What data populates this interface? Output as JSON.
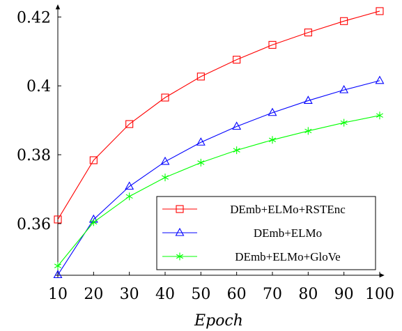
{
  "chart_data": {
    "type": "line",
    "xlabel": "Epoch",
    "ylabel": "",
    "x": [
      10,
      20,
      30,
      40,
      50,
      60,
      70,
      80,
      90,
      100
    ],
    "xlim": [
      10,
      100
    ],
    "ylim": [
      0.345,
      0.4225
    ],
    "x_ticks": [
      "10",
      "20",
      "30",
      "40",
      "50",
      "60",
      "70",
      "80",
      "90",
      "100"
    ],
    "y_ticks": [
      {
        "value": 0.36,
        "label": "0.36"
      },
      {
        "value": 0.38,
        "label": "0.38"
      },
      {
        "value": 0.4,
        "label": "0.4"
      },
      {
        "value": 0.42,
        "label": "0.42"
      }
    ],
    "grid": false,
    "legend_position": "bottom-right",
    "series": [
      {
        "name": "DEmb+ELMo+RSTEnc",
        "color": "#ff0000",
        "marker": "square",
        "values": [
          0.3612,
          0.3784,
          0.3889,
          0.3966,
          0.4027,
          0.4076,
          0.4119,
          0.4155,
          0.4188,
          0.4217
        ]
      },
      {
        "name": "DEmb+ELMo",
        "color": "#0000ff",
        "marker": "triangle",
        "values": [
          0.3451,
          0.3612,
          0.3708,
          0.378,
          0.3836,
          0.3882,
          0.3922,
          0.3957,
          0.3988,
          0.4015
        ]
      },
      {
        "name": "DEmb+ELMo+GloVe",
        "color": "#00ff00",
        "marker": "asterisk",
        "values": [
          0.3477,
          0.3604,
          0.3679,
          0.3734,
          0.3777,
          0.3813,
          0.3843,
          0.3869,
          0.3893,
          0.3914
        ]
      }
    ]
  }
}
